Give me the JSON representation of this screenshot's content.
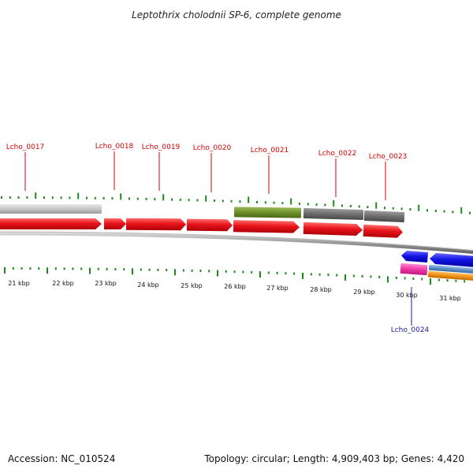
{
  "title": "Leptothrix cholodnii SP-6, complete genome",
  "footer": {
    "accession": "Accession: NC_010524",
    "summary": "Topology: circular; Length: 4,909,403 bp; Genes: 4,420"
  },
  "colors": {
    "forward_gene": "#e8151b",
    "reverse_gene": "#1414e6",
    "label_red": "#d40000",
    "label_blue": "#1a1aaa",
    "tick_green": "#1a8c1a",
    "gray_feature": "#c8c8c8",
    "dark_feature": "#6e6e6e",
    "olive_feature": "#6f8f2a",
    "pink_feature": "#ee3aa8",
    "orange_feature": "#f0931a",
    "steel_feature": "#5b8fc8"
  },
  "scale_labels": [
    "21 kbp",
    "22 kbp",
    "23 kbp",
    "24 kbp",
    "25 kbp",
    "26 kbp",
    "27 kbp",
    "28 kbp",
    "29 kbp",
    "30 kbp",
    "31 kbp"
  ],
  "gene_labels": [
    {
      "text": "Lcho_0017",
      "strand": "forward"
    },
    {
      "text": "Lcho_0018",
      "strand": "forward"
    },
    {
      "text": "Lcho_0019",
      "strand": "forward"
    },
    {
      "text": "Lcho_0020",
      "strand": "forward"
    },
    {
      "text": "Lcho_0021",
      "strand": "forward"
    },
    {
      "text": "Lcho_0022",
      "strand": "forward"
    },
    {
      "text": "Lcho_0023",
      "strand": "forward"
    },
    {
      "text": "Lcho_0024",
      "strand": "reverse"
    }
  ]
}
